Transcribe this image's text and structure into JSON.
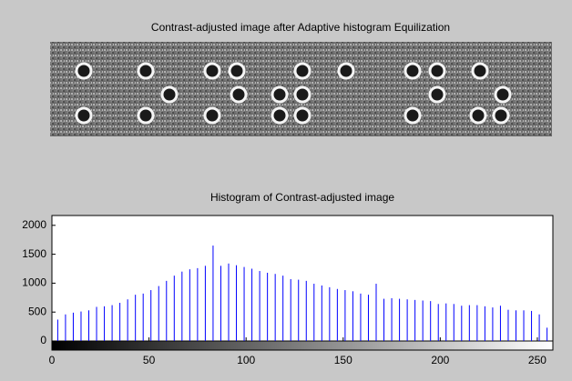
{
  "image": {
    "title": "Contrast-adjusted image after Adaptive histogram Equilization"
  },
  "chart_data": {
    "type": "stem",
    "title": "Histogram of Contrast-adjusted image",
    "x": [
      3,
      7,
      11,
      15,
      19,
      23,
      27,
      31,
      35,
      39,
      43,
      47,
      51,
      55,
      59,
      63,
      67,
      71,
      75,
      79,
      83,
      87,
      91,
      95,
      99,
      103,
      107,
      111,
      115,
      119,
      123,
      127,
      131,
      135,
      139,
      143,
      147,
      151,
      155,
      159,
      163,
      167,
      171,
      175,
      179,
      183,
      187,
      191,
      195,
      199,
      203,
      207,
      211,
      215,
      219,
      223,
      227,
      231,
      235,
      239,
      243,
      247,
      251,
      255
    ],
    "values": [
      370,
      460,
      490,
      510,
      530,
      590,
      600,
      620,
      660,
      720,
      800,
      820,
      880,
      950,
      1040,
      1130,
      1200,
      1240,
      1260,
      1300,
      1650,
      1300,
      1340,
      1310,
      1280,
      1250,
      1210,
      1180,
      1160,
      1130,
      1070,
      1060,
      1040,
      990,
      960,
      930,
      900,
      880,
      860,
      820,
      800,
      990,
      730,
      740,
      730,
      720,
      710,
      700,
      690,
      640,
      650,
      640,
      610,
      620,
      620,
      600,
      580,
      610,
      540,
      530,
      530,
      520,
      460,
      230
    ],
    "color": "#0000ff",
    "xlim": [
      0,
      258
    ],
    "xticks": [
      0,
      50,
      100,
      150,
      200,
      250
    ],
    "ylim": [
      0,
      2170
    ],
    "yticks": [
      0,
      500,
      1000,
      1500,
      2000
    ]
  }
}
